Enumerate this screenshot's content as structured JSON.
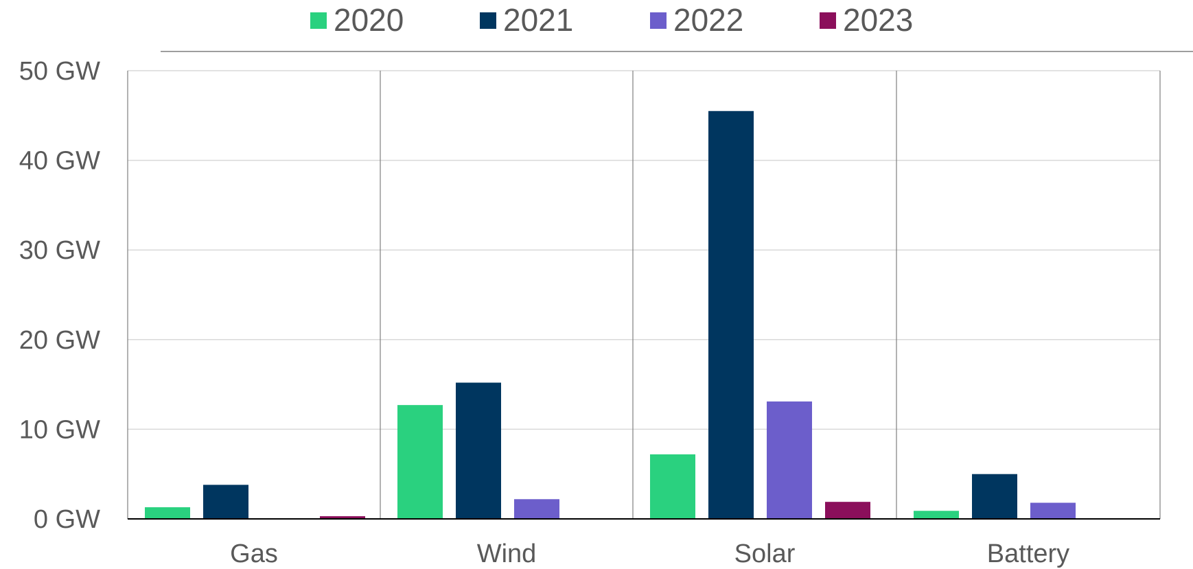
{
  "chart_data": {
    "type": "bar",
    "categories": [
      "Gas",
      "Wind",
      "Solar",
      "Battery"
    ],
    "series": [
      {
        "name": "2020",
        "color": "#2ad17f",
        "values": [
          1.3,
          12.7,
          7.2,
          0.9
        ]
      },
      {
        "name": "2021",
        "color": "#00365f",
        "values": [
          3.8,
          15.2,
          45.5,
          5.0
        ]
      },
      {
        "name": "2022",
        "color": "#6c5ecb",
        "values": [
          0,
          2.2,
          13.1,
          1.8
        ]
      },
      {
        "name": "2023",
        "color": "#8b0f5b",
        "values": [
          0.3,
          0,
          1.9,
          0
        ]
      }
    ],
    "y_ticks": [
      "0 GW",
      "10 GW",
      "20 GW",
      "30 GW",
      "40 GW",
      "50 GW"
    ],
    "ylim": [
      0,
      50
    ],
    "grid": true,
    "legend_position": "top"
  }
}
